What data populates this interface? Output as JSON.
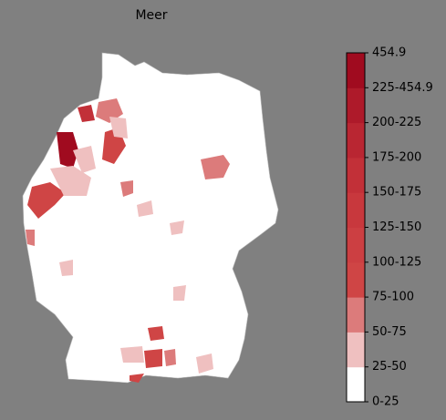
{
  "title": "Meer",
  "colorbar": {
    "labels": [
      "0-25",
      "25-50",
      "50-75",
      "75-100",
      "100-125",
      "125-150",
      "150-175",
      "175-200",
      "200-225",
      "225-454.9",
      "454.9"
    ],
    "colors": [
      "#ffffff",
      "#efc0c0",
      "#dc7b7b",
      "#cf4545",
      "#cc3f42",
      "#c8383d",
      "#c23038",
      "#b92632",
      "#ae1a2a",
      "#a00b1f"
    ]
  }
}
